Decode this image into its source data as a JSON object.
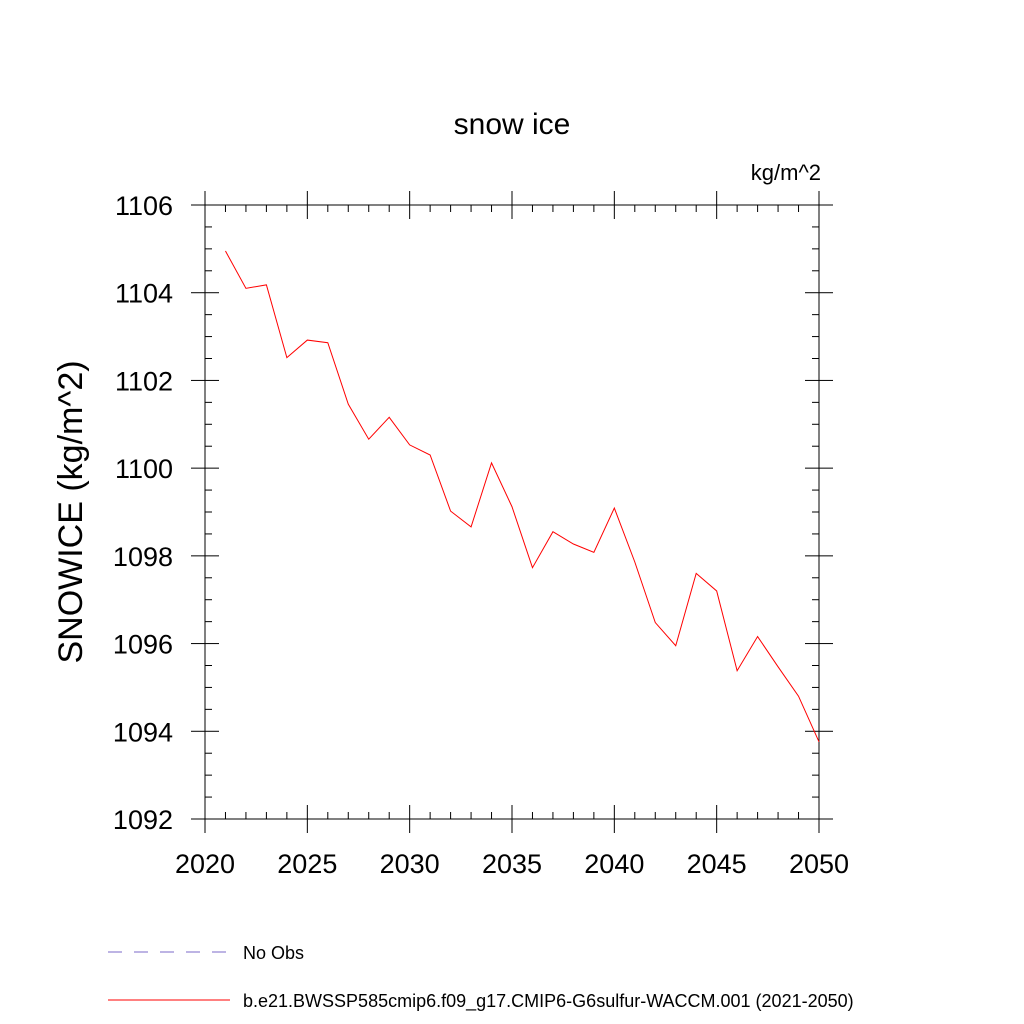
{
  "chart_data": {
    "type": "line",
    "title": "snow ice",
    "units_label": "kg/m^2",
    "ylabel": "SNOWICE  (kg/m^2)",
    "xlabel": "",
    "xlim": [
      2020,
      2050
    ],
    "ylim": [
      1092,
      1106
    ],
    "xticks": [
      2020,
      2025,
      2030,
      2035,
      2040,
      2045,
      2050
    ],
    "yticks": [
      1092,
      1094,
      1096,
      1098,
      1100,
      1102,
      1104,
      1106
    ],
    "grid": false,
    "legend_position": "bottom",
    "series": [
      {
        "name": "No Obs",
        "color": "#7b68c8",
        "dash": "dashed",
        "x": [],
        "y": []
      },
      {
        "name": "b.e21.BWSSP585cmip6.f09_g17.CMIP6-G6sulfur-WACCM.001 (2021-2050)",
        "color": "#ff0000",
        "dash": "solid",
        "x": [
          2021,
          2022,
          2023,
          2024,
          2025,
          2026,
          2027,
          2028,
          2029,
          2030,
          2031,
          2032,
          2033,
          2034,
          2035,
          2036,
          2037,
          2038,
          2039,
          2040,
          2041,
          2042,
          2043,
          2044,
          2045,
          2046,
          2047,
          2048,
          2049,
          2050
        ],
        "y": [
          1104.95,
          1104.1,
          1104.18,
          1102.52,
          1102.92,
          1102.86,
          1101.46,
          1100.66,
          1101.16,
          1100.53,
          1100.3,
          1099.02,
          1098.66,
          1100.12,
          1099.12,
          1097.73,
          1098.55,
          1098.27,
          1098.08,
          1099.09,
          1097.86,
          1096.48,
          1095.95,
          1097.6,
          1097.2,
          1095.38,
          1096.16,
          1095.47,
          1094.8,
          1093.76
        ]
      }
    ]
  }
}
